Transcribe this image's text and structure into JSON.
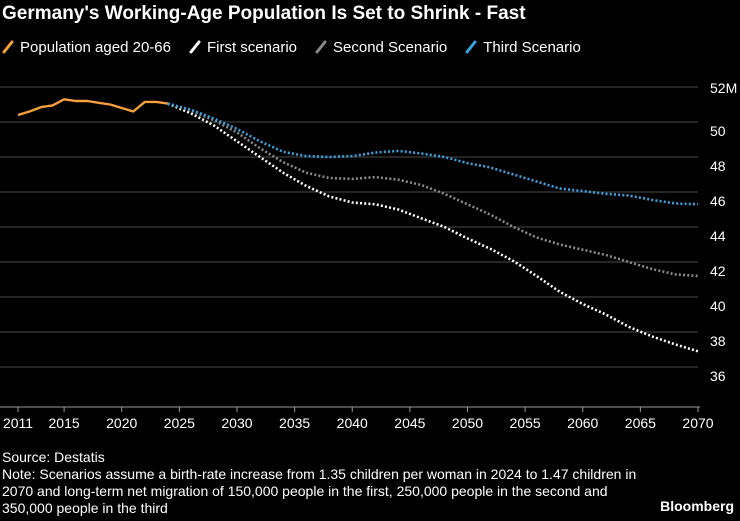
{
  "title": "Germany's Working-Age Population Is Set to Shrink - Fast",
  "legend": [
    {
      "label": "Population aged 20-66",
      "color": "#f6a03c",
      "style": "solid"
    },
    {
      "label": "First scenario",
      "color": "#ffffff",
      "style": "dotted"
    },
    {
      "label": "Second Scenario",
      "color": "#8a8a8a",
      "style": "dotted"
    },
    {
      "label": "Third Scenario",
      "color": "#3aa3e0",
      "style": "dotted"
    }
  ],
  "source": "Source: Destatis",
  "note": "Note: Scenarios assume a birth-rate increase from 1.35 children per woman in 2024 to 1.47 children in 2070 and long-term net migration of 150,000 people in the first, 250,000 people in the second and 350,000 people in the third",
  "brand": "Bloomberg",
  "chart_data": {
    "type": "line",
    "title": "Germany's Working-Age Population Is Set to Shrink - Fast",
    "xlim": [
      2011,
      2070
    ],
    "ylim": [
      36,
      52
    ],
    "y_unit": "M",
    "x_ticks": [
      2011,
      2015,
      2020,
      2025,
      2030,
      2035,
      2040,
      2045,
      2050,
      2055,
      2060,
      2065,
      2070
    ],
    "y_ticks": [
      {
        "value": 36,
        "label": "36"
      },
      {
        "value": 38,
        "label": "38"
      },
      {
        "value": 40,
        "label": "40"
      },
      {
        "value": 42,
        "label": "42"
      },
      {
        "value": 44,
        "label": "44"
      },
      {
        "value": 46,
        "label": "46"
      },
      {
        "value": 48,
        "label": "48"
      },
      {
        "value": 50,
        "label": "50"
      },
      {
        "value": 52,
        "label": "52M"
      }
    ],
    "grid": "horizontal",
    "legend_position": "top",
    "series": [
      {
        "name": "Population aged 20-66",
        "color": "#f6a03c",
        "style": "solid",
        "x": [
          2011,
          2012,
          2013,
          2014,
          2015,
          2016,
          2017,
          2018,
          2019,
          2020,
          2021,
          2022,
          2023,
          2024
        ],
        "y": [
          50.4,
          50.6,
          50.85,
          50.95,
          51.3,
          51.2,
          51.2,
          51.1,
          51.0,
          50.8,
          50.6,
          51.15,
          51.15,
          51.05
        ]
      },
      {
        "name": "First scenario",
        "color": "#ffffff",
        "style": "dotted",
        "x": [
          2024,
          2026,
          2028,
          2030,
          2032,
          2034,
          2036,
          2038,
          2040,
          2042,
          2044,
          2046,
          2048,
          2050,
          2052,
          2054,
          2056,
          2058,
          2060,
          2062,
          2064,
          2066,
          2068,
          2070
        ],
        "y": [
          51.05,
          50.5,
          49.8,
          48.9,
          48.0,
          47.1,
          46.35,
          45.75,
          45.4,
          45.3,
          45.0,
          44.5,
          44.0,
          43.35,
          42.75,
          42.05,
          41.2,
          40.3,
          39.6,
          39.0,
          38.3,
          37.75,
          37.3,
          36.9
        ]
      },
      {
        "name": "Second Scenario",
        "color": "#8a8a8a",
        "style": "dotted",
        "x": [
          2024,
          2026,
          2028,
          2030,
          2032,
          2034,
          2036,
          2038,
          2040,
          2042,
          2044,
          2046,
          2048,
          2050,
          2052,
          2054,
          2056,
          2058,
          2060,
          2062,
          2064,
          2066,
          2068,
          2070
        ],
        "y": [
          51.05,
          50.65,
          50.1,
          49.4,
          48.5,
          47.7,
          47.1,
          46.8,
          46.75,
          46.85,
          46.7,
          46.4,
          45.9,
          45.3,
          44.7,
          44.0,
          43.4,
          43.0,
          42.7,
          42.4,
          42.0,
          41.6,
          41.3,
          41.2
        ]
      },
      {
        "name": "Third Scenario",
        "color": "#3aa3e0",
        "style": "dotted",
        "x": [
          2024,
          2026,
          2028,
          2030,
          2032,
          2034,
          2036,
          2038,
          2040,
          2042,
          2044,
          2046,
          2048,
          2050,
          2052,
          2054,
          2056,
          2058,
          2060,
          2062,
          2064,
          2066,
          2068,
          2070
        ],
        "y": [
          51.05,
          50.7,
          50.2,
          49.6,
          48.9,
          48.3,
          48.05,
          48.0,
          48.05,
          48.25,
          48.35,
          48.2,
          48.0,
          47.65,
          47.4,
          47.0,
          46.6,
          46.2,
          46.05,
          45.9,
          45.8,
          45.55,
          45.35,
          45.3
        ]
      }
    ]
  }
}
